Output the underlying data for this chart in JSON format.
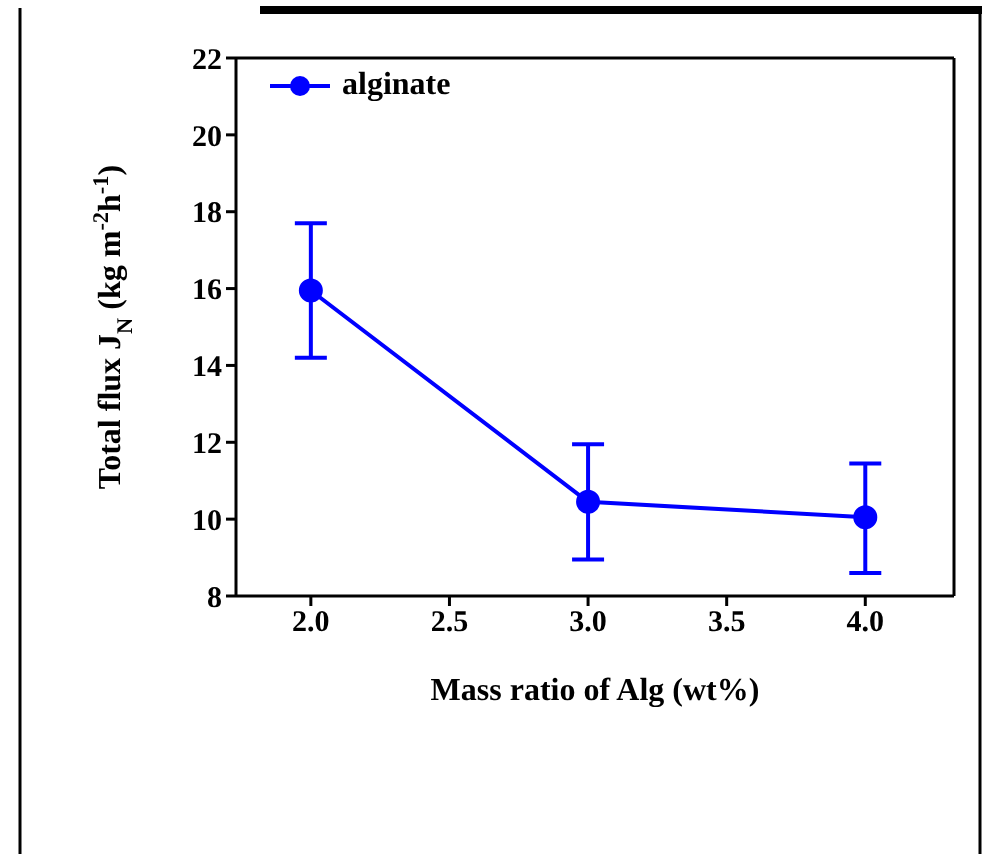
{
  "chart_data": {
    "type": "line",
    "xlabel": "Mass ratio of Alg (wt%)",
    "ylabel": "Total flux J$_{N}$ (kg m$^{-2}$h$^{-1}$)",
    "x": [
      2,
      3,
      4
    ],
    "series": [
      {
        "name": "alginate",
        "color": "#0000ff",
        "values": [
          15.95,
          10.45,
          10.05
        ],
        "errors": [
          [
            14.2,
            17.7
          ],
          [
            8.95,
            11.95
          ],
          [
            8.6,
            11.45
          ]
        ]
      }
    ],
    "xlim": [
      1.73,
      4.32
    ],
    "xticks": [
      {
        "value": 2,
        "label": "2.0"
      },
      {
        "value": 2.5,
        "label": "2.5"
      },
      {
        "value": 3,
        "label": "3.0"
      },
      {
        "value": 3.5,
        "label": "3.5"
      },
      {
        "value": 4,
        "label": "4.0"
      }
    ],
    "ylim": [
      8,
      22
    ],
    "yticks": [
      8,
      10,
      12,
      14,
      16,
      18,
      20,
      22
    ],
    "legend": "top left",
    "marker": "circle",
    "line_style": "solid"
  }
}
